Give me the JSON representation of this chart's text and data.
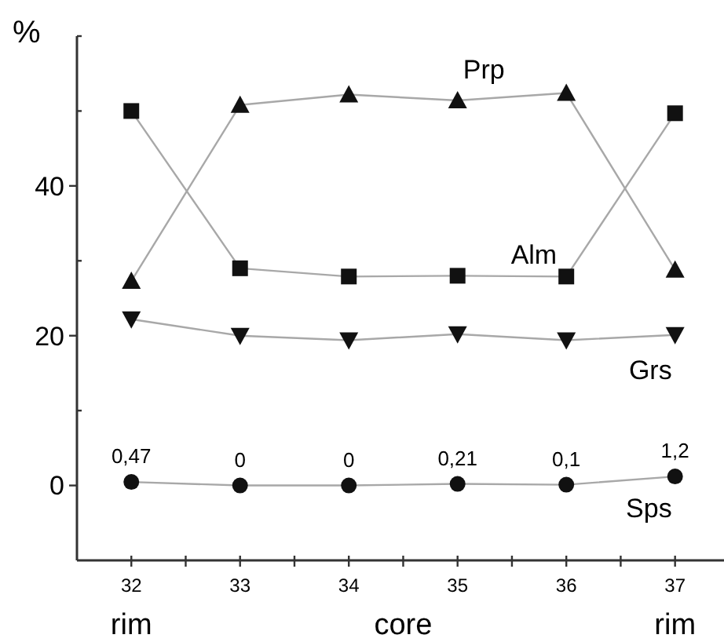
{
  "chart_data": {
    "type": "line",
    "ylabel": "%",
    "x": [
      32,
      33,
      34,
      35,
      36,
      37
    ],
    "xlim": [
      31.5,
      37.45
    ],
    "xticks": [
      32,
      {
        "value": 32.5,
        "label": null
      },
      33,
      {
        "value": 33.5,
        "label": null
      },
      34,
      {
        "value": 34.5,
        "label": null
      },
      35,
      {
        "value": 35.5,
        "label": null
      },
      36,
      {
        "value": 36.5,
        "label": null
      },
      37
    ],
    "ylim": [
      -10,
      60
    ],
    "yticks": [
      0,
      {
        "value": 10,
        "label": null
      },
      20,
      {
        "value": 30,
        "label": null
      },
      40,
      {
        "value": 50,
        "label": null
      },
      {
        "value": 60,
        "label": null
      }
    ],
    "grid": false,
    "line_style": "solid",
    "series": [
      {
        "name": "Alm",
        "color": "#111111",
        "marker": "square",
        "values": [
          50.0,
          29.0,
          27.9,
          28.0,
          27.9,
          49.7
        ]
      },
      {
        "name": "Prp",
        "color": "#111111",
        "marker": "triangle",
        "values": [
          27.3,
          50.8,
          52.2,
          51.4,
          52.4,
          28.8
        ]
      },
      {
        "name": "Grs",
        "color": "#111111",
        "marker": "triangle-down",
        "values": [
          22.2,
          20.0,
          19.4,
          20.2,
          19.4,
          20.1
        ]
      },
      {
        "name": "Sps",
        "color": "#111111",
        "marker": "circle",
        "values": [
          0.47,
          0,
          0,
          0.21,
          0.1,
          1.2
        ],
        "value_labels": [
          "0,47",
          "0",
          "0",
          "0,21",
          "0,1",
          "1,2"
        ]
      }
    ],
    "annotations": [
      "rim",
      "core",
      "rim"
    ]
  }
}
